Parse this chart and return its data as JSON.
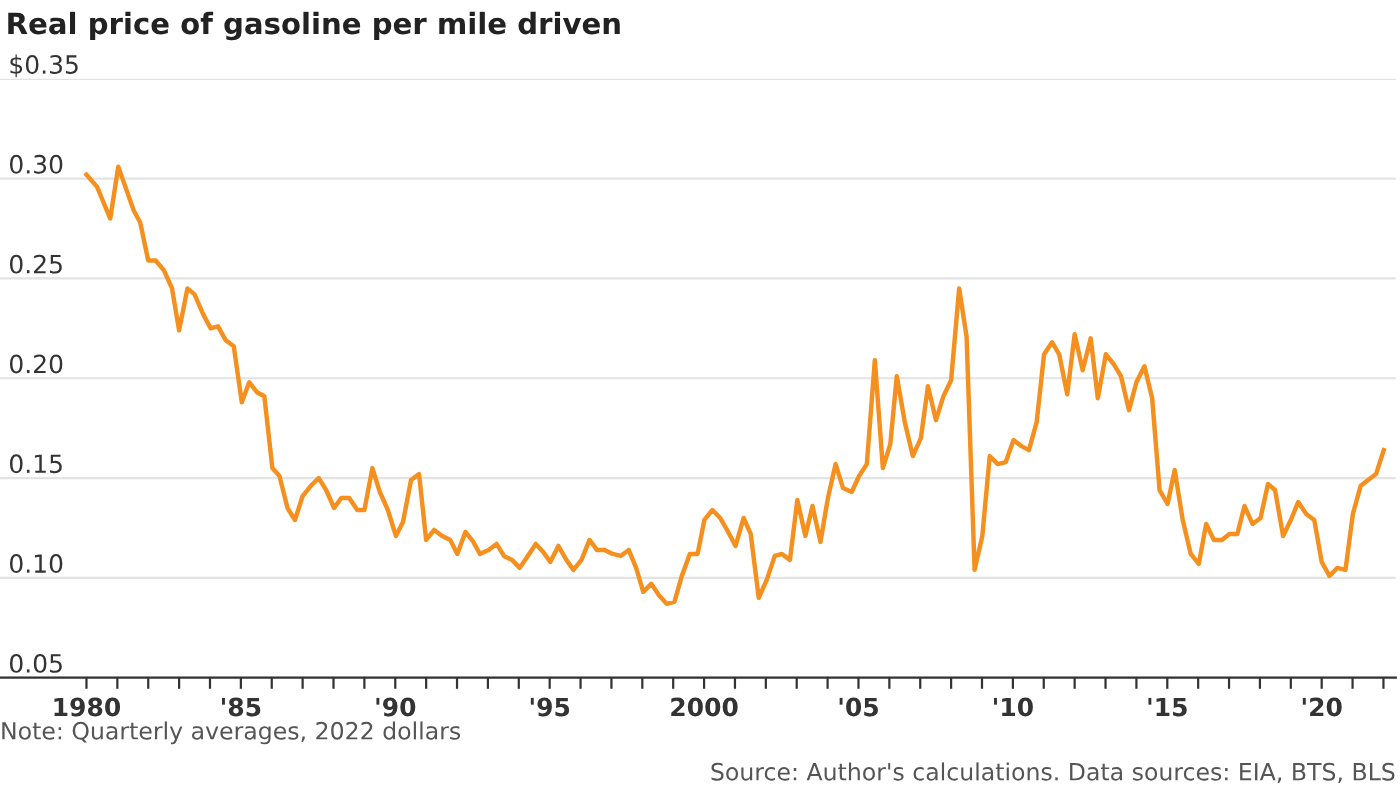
{
  "chart_data": {
    "type": "line",
    "title": "Real price of gasoline per mile driven",
    "annotations": [
      "Note: Quarterly averages, 2022 dollars",
      "Source: Author's calculations. Data sources: EIA, BTS, BLS"
    ],
    "x": [
      1980.0,
      1980.34,
      1980.77,
      1981.03,
      1981.53,
      1981.74,
      1982.0,
      1982.24,
      1982.51,
      1982.77,
      1983.0,
      1983.27,
      1983.5,
      1983.78,
      1984.02,
      1984.26,
      1984.51,
      1984.77,
      1985.03,
      1985.27,
      1985.52,
      1985.76,
      1986.02,
      1986.25,
      1986.51,
      1986.75,
      1987.0,
      1987.26,
      1987.52,
      1987.76,
      1988.02,
      1988.25,
      1988.51,
      1988.77,
      1989.0,
      1989.26,
      1989.5,
      1989.76,
      1990.02,
      1990.25,
      1990.51,
      1990.77,
      1991.0,
      1991.26,
      1991.52,
      1991.78,
      1992.01,
      1992.27,
      1992.53,
      1992.74,
      1993.02,
      1993.28,
      1993.52,
      1993.78,
      1994.03,
      1994.29,
      1994.55,
      1994.79,
      1995.02,
      1995.28,
      1995.54,
      1995.77,
      1996.03,
      1996.29,
      1996.53,
      1996.78,
      1997.04,
      1997.3,
      1997.56,
      1997.8,
      1998.03,
      1998.29,
      1998.55,
      1998.79,
      1999.04,
      1999.28,
      1999.54,
      1999.79,
      2000.01,
      2000.27,
      2000.52,
      2000.78,
      2001.02,
      2001.28,
      2001.51,
      2001.77,
      2002.03,
      2002.29,
      2002.52,
      2002.78,
      2003.02,
      2003.28,
      2003.51,
      2003.77,
      2004.01,
      2004.26,
      2004.5,
      2004.78,
      2005.02,
      2005.27,
      2005.53,
      2005.79,
      2006.03,
      2006.24,
      2006.5,
      2006.76,
      2007.02,
      2007.25,
      2007.51,
      2007.75,
      2008.0,
      2008.26,
      2008.5,
      2008.76,
      2009.01,
      2009.25,
      2009.51,
      2009.77,
      2010.02,
      2010.28,
      2010.52,
      2010.77,
      2011.01,
      2011.27,
      2011.5,
      2011.76,
      2012.0,
      2012.26,
      2012.52,
      2012.75,
      2013.01,
      2013.27,
      2013.5,
      2013.76,
      2014.0,
      2014.26,
      2014.51,
      2014.75,
      2015.01,
      2015.24,
      2015.5,
      2015.76,
      2016.02,
      2016.26,
      2016.51,
      2016.77,
      2017.01,
      2017.27,
      2017.5,
      2017.76,
      2018.02,
      2018.26,
      2018.49,
      2018.75,
      2019.0,
      2019.24,
      2019.5,
      2019.76,
      2020.0,
      2020.25,
      2020.51,
      2020.77,
      2021.01,
      2021.26,
      2021.5,
      2021.76,
      2022.01
    ],
    "series": [
      {
        "color": "#f5901e",
        "values": [
          0.302,
          0.296,
          0.28,
          0.306,
          0.284,
          0.278,
          0.259,
          0.259,
          0.254,
          0.245,
          0.224,
          0.245,
          0.242,
          0.232,
          0.225,
          0.226,
          0.219,
          0.216,
          0.188,
          0.198,
          0.193,
          0.191,
          0.155,
          0.151,
          0.135,
          0.129,
          0.141,
          0.146,
          0.15,
          0.144,
          0.135,
          0.14,
          0.14,
          0.134,
          0.134,
          0.155,
          0.143,
          0.134,
          0.121,
          0.128,
          0.149,
          0.152,
          0.119,
          0.124,
          0.121,
          0.119,
          0.112,
          0.123,
          0.118,
          0.112,
          0.114,
          0.117,
          0.111,
          0.109,
          0.105,
          0.111,
          0.117,
          0.113,
          0.108,
          0.116,
          0.109,
          0.104,
          0.109,
          0.119,
          0.114,
          0.114,
          0.112,
          0.111,
          0.114,
          0.105,
          0.093,
          0.097,
          0.091,
          0.087,
          0.088,
          0.101,
          0.112,
          0.112,
          0.129,
          0.134,
          0.13,
          0.123,
          0.116,
          0.13,
          0.122,
          0.09,
          0.099,
          0.111,
          0.112,
          0.109,
          0.139,
          0.121,
          0.136,
          0.118,
          0.14,
          0.157,
          0.145,
          0.143,
          0.151,
          0.157,
          0.209,
          0.155,
          0.167,
          0.201,
          0.178,
          0.161,
          0.17,
          0.196,
          0.179,
          0.191,
          0.199,
          0.245,
          0.221,
          0.104,
          0.121,
          0.161,
          0.157,
          0.158,
          0.169,
          0.166,
          0.164,
          0.178,
          0.212,
          0.218,
          0.212,
          0.192,
          0.222,
          0.204,
          0.22,
          0.19,
          0.212,
          0.207,
          0.201,
          0.184,
          0.198,
          0.206,
          0.19,
          0.144,
          0.137,
          0.154,
          0.129,
          0.112,
          0.107,
          0.127,
          0.119,
          0.119,
          0.122,
          0.122,
          0.136,
          0.127,
          0.13,
          0.147,
          0.144,
          0.121,
          0.129,
          0.138,
          0.132,
          0.129,
          0.108,
          0.101,
          0.105,
          0.104,
          0.132,
          0.146,
          0.149,
          0.152,
          0.164
        ]
      }
    ],
    "xlim": [
      1977.2,
      2022.4
    ],
    "xticks": [
      1980,
      {
        "value": 1981,
        "label": null
      },
      {
        "value": 1982,
        "label": null
      },
      {
        "value": 1983,
        "label": null
      },
      {
        "value": 1984,
        "label": null
      },
      {
        "value": 1985,
        "label": "'85"
      },
      {
        "value": 1986,
        "label": null
      },
      {
        "value": 1987,
        "label": null
      },
      {
        "value": 1988,
        "label": null
      },
      {
        "value": 1989,
        "label": null
      },
      {
        "value": 1990,
        "label": "'90"
      },
      {
        "value": 1991,
        "label": null
      },
      {
        "value": 1992,
        "label": null
      },
      {
        "value": 1993,
        "label": null
      },
      {
        "value": 1994,
        "label": null
      },
      {
        "value": 1995,
        "label": "'95"
      },
      {
        "value": 1996,
        "label": null
      },
      {
        "value": 1997,
        "label": null
      },
      {
        "value": 1998,
        "label": null
      },
      {
        "value": 1999,
        "label": null
      },
      2000,
      {
        "value": 2001,
        "label": null
      },
      {
        "value": 2002,
        "label": null
      },
      {
        "value": 2003,
        "label": null
      },
      {
        "value": 2004,
        "label": null
      },
      {
        "value": 2005,
        "label": "'05"
      },
      {
        "value": 2006,
        "label": null
      },
      {
        "value": 2007,
        "label": null
      },
      {
        "value": 2008,
        "label": null
      },
      {
        "value": 2009,
        "label": null
      },
      {
        "value": 2010,
        "label": "'10"
      },
      {
        "value": 2011,
        "label": null
      },
      {
        "value": 2012,
        "label": null
      },
      {
        "value": 2013,
        "label": null
      },
      {
        "value": 2014,
        "label": null
      },
      {
        "value": 2015,
        "label": "'15"
      },
      {
        "value": 2016,
        "label": null
      },
      {
        "value": 2017,
        "label": null
      },
      {
        "value": 2018,
        "label": null
      },
      {
        "value": 2019,
        "label": null
      },
      {
        "value": 2020,
        "label": "'20"
      },
      {
        "value": 2021,
        "label": null
      },
      {
        "value": 2022,
        "label": null
      }
    ],
    "ylim": [
      0.05,
      0.35
    ],
    "yticks": [
      0.05,
      {
        "value": 0.1,
        "label": "0.10"
      },
      0.15,
      {
        "value": 0.2,
        "label": "0.20"
      },
      0.25,
      {
        "value": 0.3,
        "label": "0.30"
      },
      {
        "value": 0.35,
        "label": "$0.35"
      }
    ],
    "grid": "y",
    "legend": false,
    "marker": "none",
    "line_style": "solid"
  }
}
